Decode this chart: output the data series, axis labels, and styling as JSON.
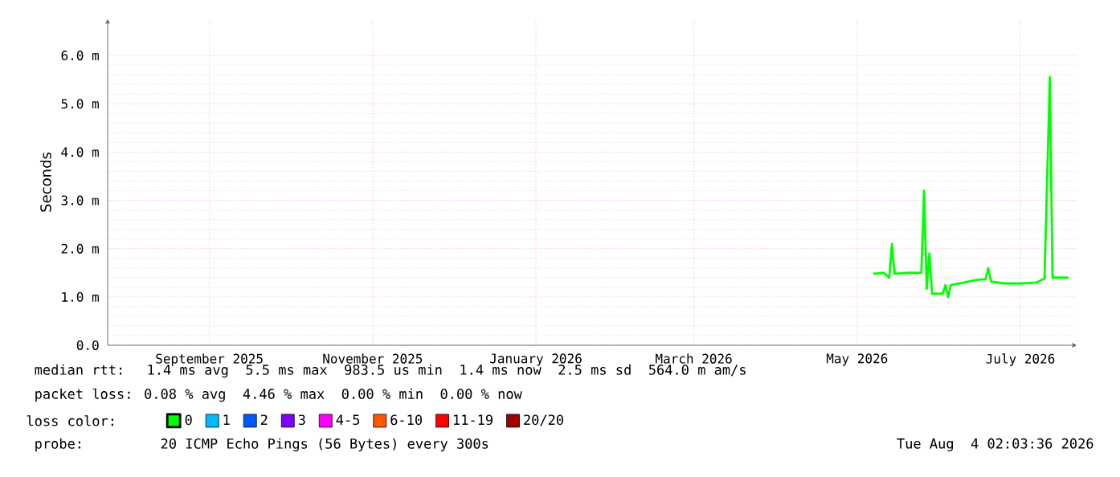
{
  "chart_data": {
    "type": "line",
    "ylabel": "Seconds",
    "xlim": [
      "2025-07-25",
      "2026-07-22"
    ],
    "xticks": [
      {
        "value": "2025-09-01",
        "label": "September 2025"
      },
      {
        "value": "2025-11-01",
        "label": "November 2025"
      },
      {
        "value": "2026-01-01",
        "label": "January 2026"
      },
      {
        "value": "2026-03-01",
        "label": "March 2026"
      },
      {
        "value": "2026-05-01",
        "label": "May 2026"
      },
      {
        "value": "2026-07-01",
        "label": "July 2026"
      }
    ],
    "ylim": [
      0,
      6.75
    ],
    "yticks": [
      {
        "value": 0,
        "label": "0.0"
      },
      {
        "value": 1,
        "label": "1.0 m"
      },
      {
        "value": 2,
        "label": "2.0 m"
      },
      {
        "value": 3,
        "label": "3.0 m"
      },
      {
        "value": 4,
        "label": "4.0 m"
      },
      {
        "value": 5,
        "label": "5.0 m"
      },
      {
        "value": 6,
        "label": "6.0 m"
      }
    ],
    "x": [
      "2026-05-07",
      "2026-05-11",
      "2026-05-13",
      "2026-05-14",
      "2026-05-15",
      "2026-05-20",
      "2026-05-25",
      "2026-05-26",
      "2026-05-27",
      "2026-05-28",
      "2026-05-29",
      "2026-06-02",
      "2026-06-03",
      "2026-06-04",
      "2026-06-05",
      "2026-06-10",
      "2026-06-14",
      "2026-06-18",
      "2026-06-19",
      "2026-06-20",
      "2026-06-25",
      "2026-07-01",
      "2026-07-07",
      "2026-07-10",
      "2026-07-12",
      "2026-07-13",
      "2026-07-19"
    ],
    "series": [
      {
        "name": "0",
        "color": "#00ff00",
        "values": [
          1.48,
          1.5,
          1.4,
          2.1,
          1.48,
          1.5,
          1.5,
          3.2,
          1.17,
          1.9,
          1.07,
          1.07,
          1.25,
          1.0,
          1.25,
          1.3,
          1.35,
          1.37,
          1.6,
          1.32,
          1.28,
          1.28,
          1.3,
          1.38,
          5.55,
          1.4,
          1.4
        ]
      },
      {
        "name": "1",
        "color": "#00b8ff",
        "values": [
          null,
          null,
          null,
          null,
          null,
          null,
          null,
          null,
          null,
          null,
          null,
          null,
          null,
          null,
          null,
          null,
          null,
          null,
          null,
          null,
          null,
          null,
          null,
          null,
          null,
          null,
          null
        ]
      },
      {
        "name": "2",
        "color": "#0059ff",
        "values": [
          null,
          null,
          null,
          null,
          null,
          null,
          null,
          null,
          null,
          null,
          null,
          null,
          null,
          null,
          null,
          null,
          null,
          null,
          null,
          null,
          null,
          null,
          null,
          null,
          null,
          null,
          null
        ]
      },
      {
        "name": "3",
        "color": "#7e00ff",
        "values": [
          null,
          null,
          null,
          null,
          null,
          null,
          null,
          null,
          null,
          null,
          null,
          null,
          null,
          null,
          null,
          null,
          null,
          null,
          null,
          null,
          null,
          null,
          null,
          null,
          null,
          null,
          null
        ]
      },
      {
        "name": "4-5",
        "color": "#ff00ff",
        "values": [
          null,
          null,
          null,
          null,
          null,
          null,
          null,
          null,
          null,
          null,
          null,
          null,
          null,
          null,
          null,
          null,
          null,
          null,
          null,
          null,
          null,
          null,
          null,
          null,
          null,
          null,
          null
        ]
      },
      {
        "name": "6-10",
        "color": "#ff5500",
        "values": [
          null,
          null,
          null,
          null,
          null,
          null,
          null,
          null,
          null,
          null,
          null,
          null,
          null,
          null,
          null,
          null,
          null,
          null,
          null,
          null,
          null,
          null,
          null,
          null,
          null,
          null,
          null
        ]
      },
      {
        "name": "11-19",
        "color": "#ff0000",
        "values": [
          null,
          null,
          null,
          null,
          null,
          null,
          null,
          null,
          null,
          null,
          null,
          null,
          null,
          null,
          null,
          null,
          null,
          null,
          null,
          null,
          null,
          null,
          null,
          null,
          null,
          null,
          null
        ]
      },
      {
        "name": "20/20",
        "color": "#a10000",
        "values": [
          null,
          null,
          null,
          null,
          null,
          null,
          null,
          null,
          null,
          null,
          null,
          null,
          null,
          null,
          null,
          null,
          null,
          null,
          null,
          null,
          null,
          null,
          null,
          null,
          null,
          null,
          null
        ]
      }
    ],
    "legend_title": "loss color:",
    "legend": "bottom",
    "grid": true,
    "marker": "none",
    "line_style": "solid",
    "annotations": [
      "median rtt:  1.4 ms avg  5.5 ms max  983.5 us min  1.4 ms now  2.5 ms sd  564.0 m am/s",
      "packet loss: 0.08 % avg  4.46 % max  0.00 % min  0.00 % now",
      "probe:       20 ICMP Echo Pings (56 Bytes) every 300s",
      "Tue Aug  4 02:03:36 2026"
    ]
  }
}
